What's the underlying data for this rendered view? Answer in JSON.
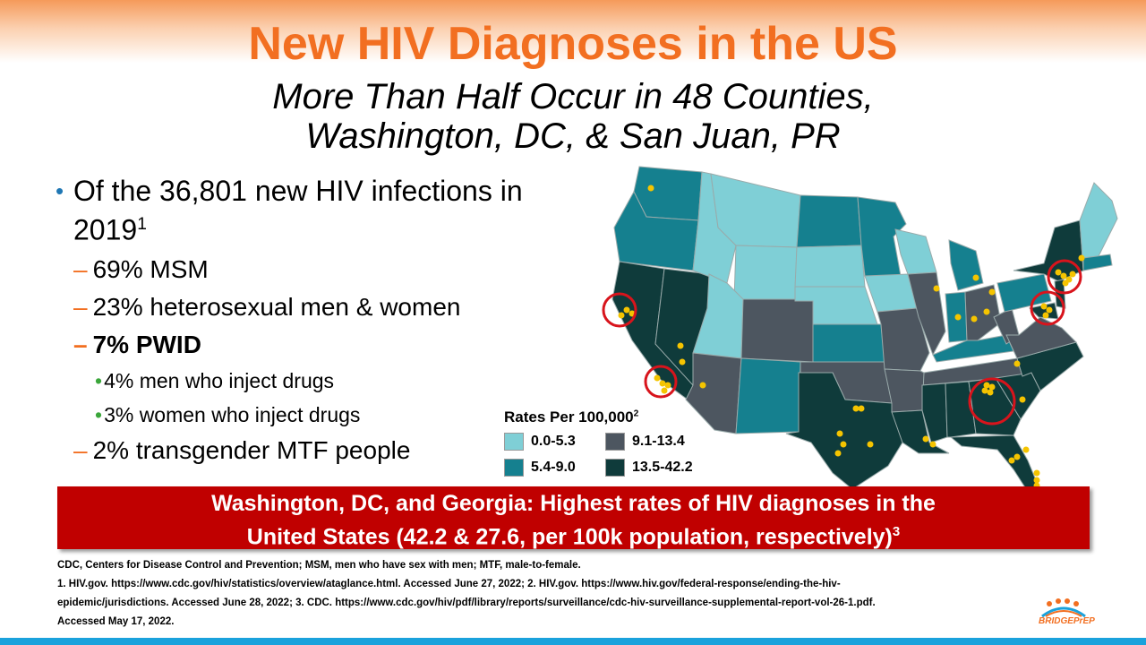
{
  "title": "New HIV Diagnoses in the US",
  "subtitle_line1": "More Than Half Occur in 48 Counties,",
  "subtitle_line2": "Washington, DC, & San Juan, PR",
  "bullets": {
    "main": "Of the 36,801 new HIV infections in 2019",
    "main_ref": "1",
    "msm": "69% MSM",
    "hetero": "23% heterosexual men & women",
    "pwid": "7% PWID",
    "men_inject": "4% men who inject drugs",
    "women_inject": "3% women who inject drugs",
    "transgender": "2% transgender MTF people"
  },
  "legend": {
    "title": "Rates Per 100,000",
    "title_ref": "2",
    "items": [
      {
        "label": "0.0-5.3",
        "color": "#7fcfd6"
      },
      {
        "label": "9.1-13.4",
        "color": "#4d5660"
      },
      {
        "label": "5.4-9.0",
        "color": "#15808f"
      },
      {
        "label": "13.5-42.2",
        "color": "#0f3b3b"
      }
    ]
  },
  "banner": {
    "line1": "Washington, DC, and Georgia: Highest rates of HIV diagnoses in the",
    "line2": "United States (42.2 & 27.6, per 100k population, respectively)",
    "ref": "3"
  },
  "footnotes": {
    "line1": "CDC, Centers for Disease Control and Prevention; MSM, men who have sex with men; MTF, male-to-female.",
    "line2": "1. HIV.gov. https://www.cdc.gov/hiv/statistics/overview/ataglance.html.  Accessed  June 27, 2022;  2. HIV.gov. https://www.hiv.gov/federal-response/ending-the-hiv-",
    "line3": "epidemic/jurisdictions. Accessed  June 28, 2022;  3. CDC.  https://www.cdc.gov/hiv/pdf/library/reports/surveillance/cdc-hiv-surveillance-supplemental-report-vol-26-1.pdf.",
    "line4": "Accessed  May 17, 2022."
  },
  "logo_text": "BRIDGEPrEP",
  "colors": {
    "title": "#f26f21",
    "banner": "#c00000",
    "marker": "#f5c400",
    "circle": "#d8141c"
  }
}
